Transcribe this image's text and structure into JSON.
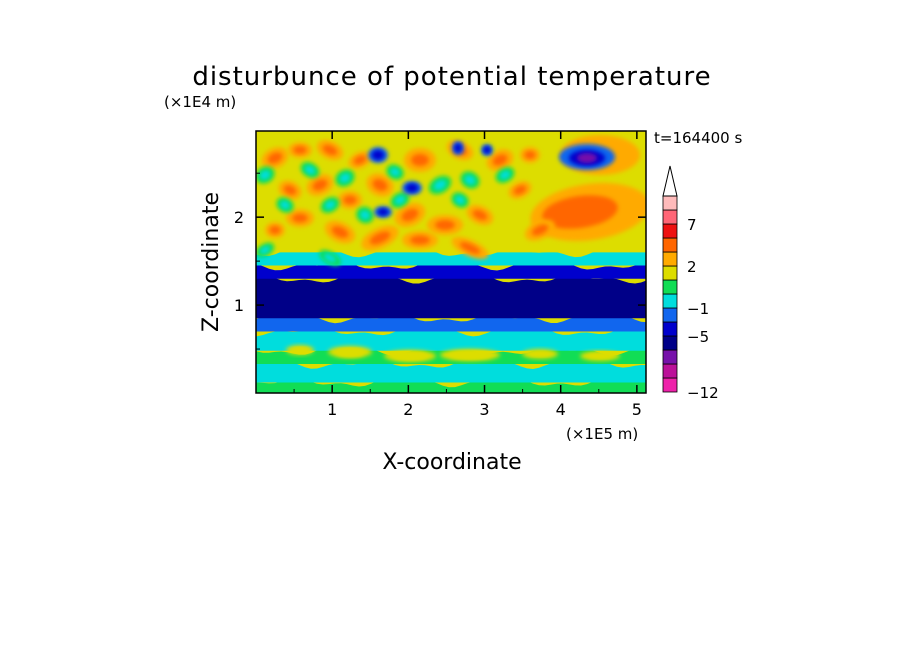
{
  "chart_data": {
    "type": "heatmap",
    "title": "disturbunce of potential temperature",
    "xlabel": "X-coordinate",
    "ylabel": "Z-coordinate",
    "x_unit": "(×1E5 m)",
    "y_unit": "(×1E4 m)",
    "time_label": "t=164400 s",
    "xlim": [
      0,
      5.12
    ],
    "ylim": [
      0,
      2.98
    ],
    "x_ticks": [
      1,
      2,
      3,
      4,
      5
    ],
    "y_ticks": [
      1,
      2
    ],
    "colorbar": {
      "tick_labels": [
        "7",
        "2",
        "-1",
        "-5",
        "-12"
      ],
      "tick_values": [
        7,
        2,
        -1,
        -5,
        -12
      ],
      "extend": "max",
      "levels": [
        {
          "color": "#ee22aa"
        },
        {
          "color": "#bb1199"
        },
        {
          "color": "#7711aa"
        },
        {
          "color": "#000088"
        },
        {
          "color": "#0000cc"
        },
        {
          "color": "#1166ee"
        },
        {
          "color": "#00dddd"
        },
        {
          "color": "#11dd55"
        },
        {
          "color": "#dddd00"
        },
        {
          "color": "#ffaa00"
        },
        {
          "color": "#ff6600"
        },
        {
          "color": "#ee1111"
        },
        {
          "color": "#ff6677"
        },
        {
          "color": "#ffbbbb"
        }
      ]
    },
    "field_description_bands": [
      {
        "z_from": 0.0,
        "z_to": 0.12,
        "level": 7
      },
      {
        "z_from": 0.12,
        "z_to": 0.33,
        "level": 6
      },
      {
        "z_from": 0.33,
        "z_to": 0.48,
        "level": 7
      },
      {
        "z_from": 0.48,
        "z_to": 0.7,
        "level": 6
      },
      {
        "z_from": 0.7,
        "z_to": 0.85,
        "level": 5
      },
      {
        "z_from": 0.85,
        "z_to": 1.3,
        "level": 3
      },
      {
        "z_from": 1.3,
        "z_to": 1.45,
        "level": 4
      },
      {
        "z_from": 1.45,
        "z_to": 1.6,
        "level": 6
      },
      {
        "z_from": 1.6,
        "z_to": 2.98,
        "level": 8
      }
    ]
  }
}
